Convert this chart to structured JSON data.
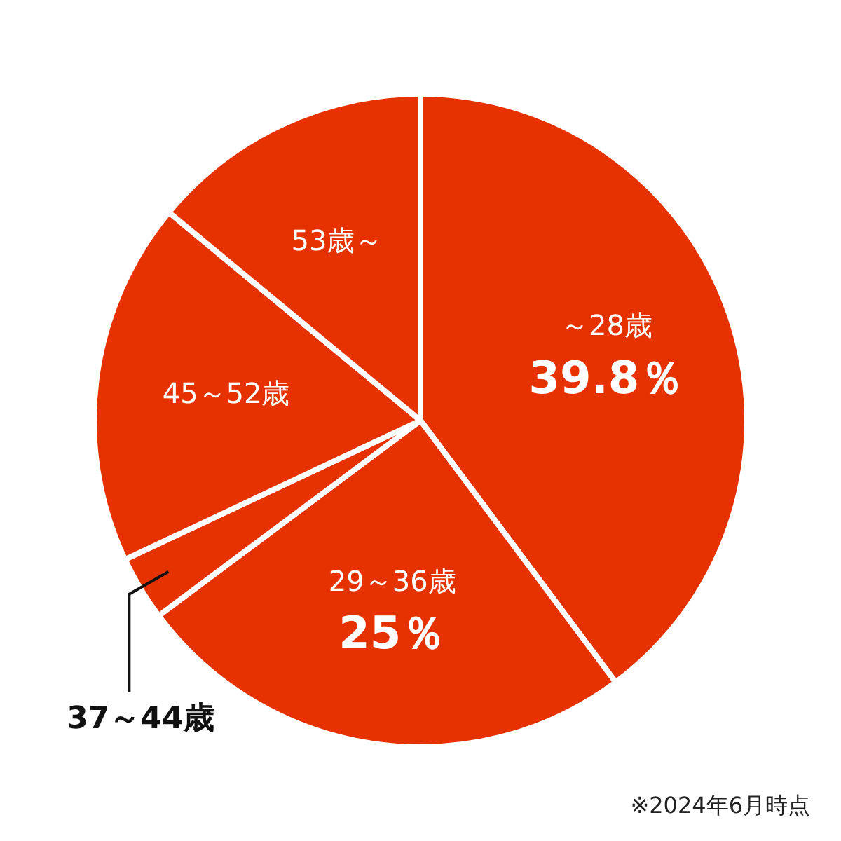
{
  "chart_data": {
    "type": "pie",
    "categories": [
      "～28歳",
      "29～36歳",
      "37～44歳",
      "45～52歳",
      "53歳～"
    ],
    "values": [
      39.8,
      25,
      3.2,
      18,
      14
    ],
    "value_labels": [
      "39.8％",
      "25％",
      null,
      null,
      null
    ],
    "colors": [
      "#e63200",
      "#e63200",
      "#e63200",
      "#e63200",
      "#e63200"
    ],
    "legend": false,
    "annotations": [
      "※2024年6月時点"
    ]
  }
}
